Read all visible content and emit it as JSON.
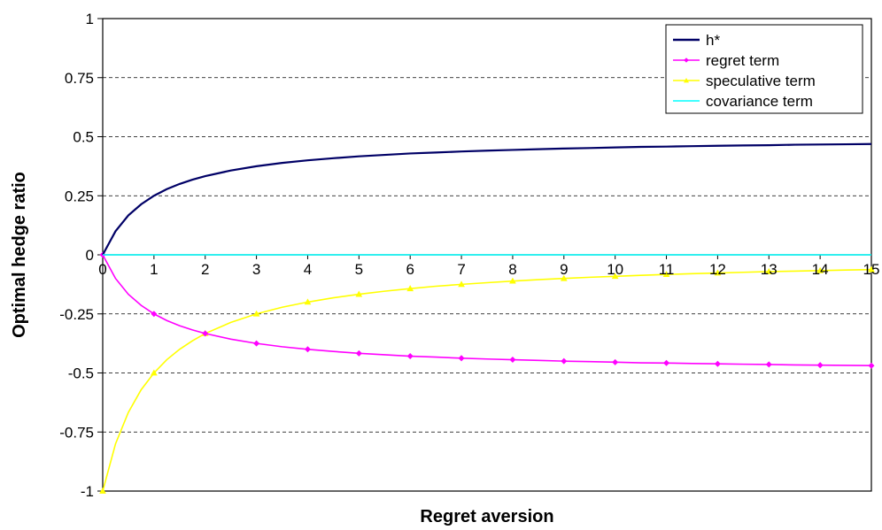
{
  "chart_data": {
    "type": "line",
    "xlabel": "Regret aversion",
    "ylabel": "Optimal hedge ratio",
    "xlim": [
      0,
      15
    ],
    "ylim": [
      -1,
      1
    ],
    "x_ticks": [
      "0",
      "1",
      "2",
      "3",
      "4",
      "5",
      "6",
      "7",
      "8",
      "9",
      "10",
      "11",
      "12",
      "13",
      "14",
      "15"
    ],
    "y_ticks": [
      "1",
      "0.75",
      "0.5",
      "0.25",
      "0",
      "-0.25",
      "-0.5",
      "-0.75",
      "-1"
    ],
    "grid": "horizontal dashed",
    "legend_position": "top-right",
    "x": [
      0,
      0.25,
      0.5,
      0.75,
      1,
      1.25,
      1.5,
      1.75,
      2,
      2.5,
      3,
      3.5,
      4,
      4.5,
      5,
      5.5,
      6,
      6.5,
      7,
      7.5,
      8,
      8.5,
      9,
      9.5,
      10,
      10.5,
      11,
      11.5,
      12,
      12.5,
      13,
      13.5,
      14,
      14.5,
      15
    ],
    "series": [
      {
        "name": "h*",
        "color": "#000066",
        "marker": "none",
        "values": [
          0,
          0.1,
          0.167,
          0.214,
          0.25,
          0.278,
          0.3,
          0.318,
          0.333,
          0.357,
          0.375,
          0.389,
          0.4,
          0.409,
          0.417,
          0.423,
          0.429,
          0.433,
          0.4375,
          0.441,
          0.444,
          0.447,
          0.45,
          0.452,
          0.4545,
          0.457,
          0.458,
          0.46,
          0.4615,
          0.463,
          0.464,
          0.466,
          0.467,
          0.468,
          0.469
        ]
      },
      {
        "name": "regret term",
        "color": "#ff00ff",
        "marker": "diamond",
        "values": [
          0,
          -0.1,
          -0.167,
          -0.214,
          -0.25,
          -0.278,
          -0.3,
          -0.318,
          -0.333,
          -0.357,
          -0.375,
          -0.389,
          -0.4,
          -0.409,
          -0.417,
          -0.423,
          -0.429,
          -0.433,
          -0.4375,
          -0.441,
          -0.444,
          -0.447,
          -0.45,
          -0.452,
          -0.4545,
          -0.457,
          -0.458,
          -0.46,
          -0.4615,
          -0.463,
          -0.464,
          -0.466,
          -0.467,
          -0.468,
          -0.469
        ]
      },
      {
        "name": "speculative term",
        "color": "#ffff00",
        "marker": "triangle",
        "values": [
          -1,
          -0.8,
          -0.667,
          -0.571,
          -0.5,
          -0.444,
          -0.4,
          -0.364,
          -0.333,
          -0.286,
          -0.25,
          -0.222,
          -0.2,
          -0.182,
          -0.167,
          -0.154,
          -0.143,
          -0.133,
          -0.125,
          -0.118,
          -0.111,
          -0.105,
          -0.1,
          -0.095,
          -0.0909,
          -0.087,
          -0.083,
          -0.08,
          -0.0769,
          -0.074,
          -0.071,
          -0.069,
          -0.0667,
          -0.0645,
          -0.0625
        ]
      },
      {
        "name": "covariance term",
        "color": "#00ffff",
        "marker": "none",
        "values": [
          0,
          0,
          0,
          0,
          0,
          0,
          0,
          0,
          0,
          0,
          0,
          0,
          0,
          0,
          0,
          0,
          0,
          0,
          0,
          0,
          0,
          0,
          0,
          0,
          0,
          0,
          0,
          0,
          0,
          0,
          0,
          0,
          0,
          0,
          0
        ]
      }
    ]
  }
}
